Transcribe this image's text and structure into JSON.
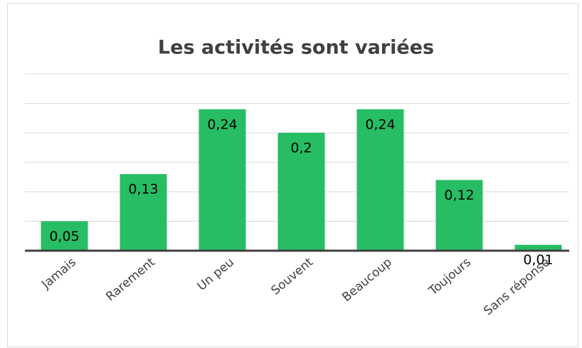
{
  "chart_data": {
    "type": "bar",
    "title": "Les activités sont variées",
    "categories": [
      "Jamais",
      "Rarement",
      "Un peu",
      "Souvent",
      "Beaucoup",
      "Toujours",
      "Sans réponse"
    ],
    "values": [
      0.05,
      0.13,
      0.24,
      0.2,
      0.24,
      0.12,
      0.01
    ],
    "value_labels": [
      "0,05",
      "0,13",
      "0,24",
      "0,2",
      "0,24",
      "0,12",
      "0,01"
    ],
    "color": "#27bd64",
    "ylim": [
      0,
      0.3
    ],
    "yticks": [
      0,
      0.05,
      0.1,
      0.15,
      0.2,
      0.25,
      0.3
    ],
    "grid": true,
    "ytick_labels": false
  }
}
